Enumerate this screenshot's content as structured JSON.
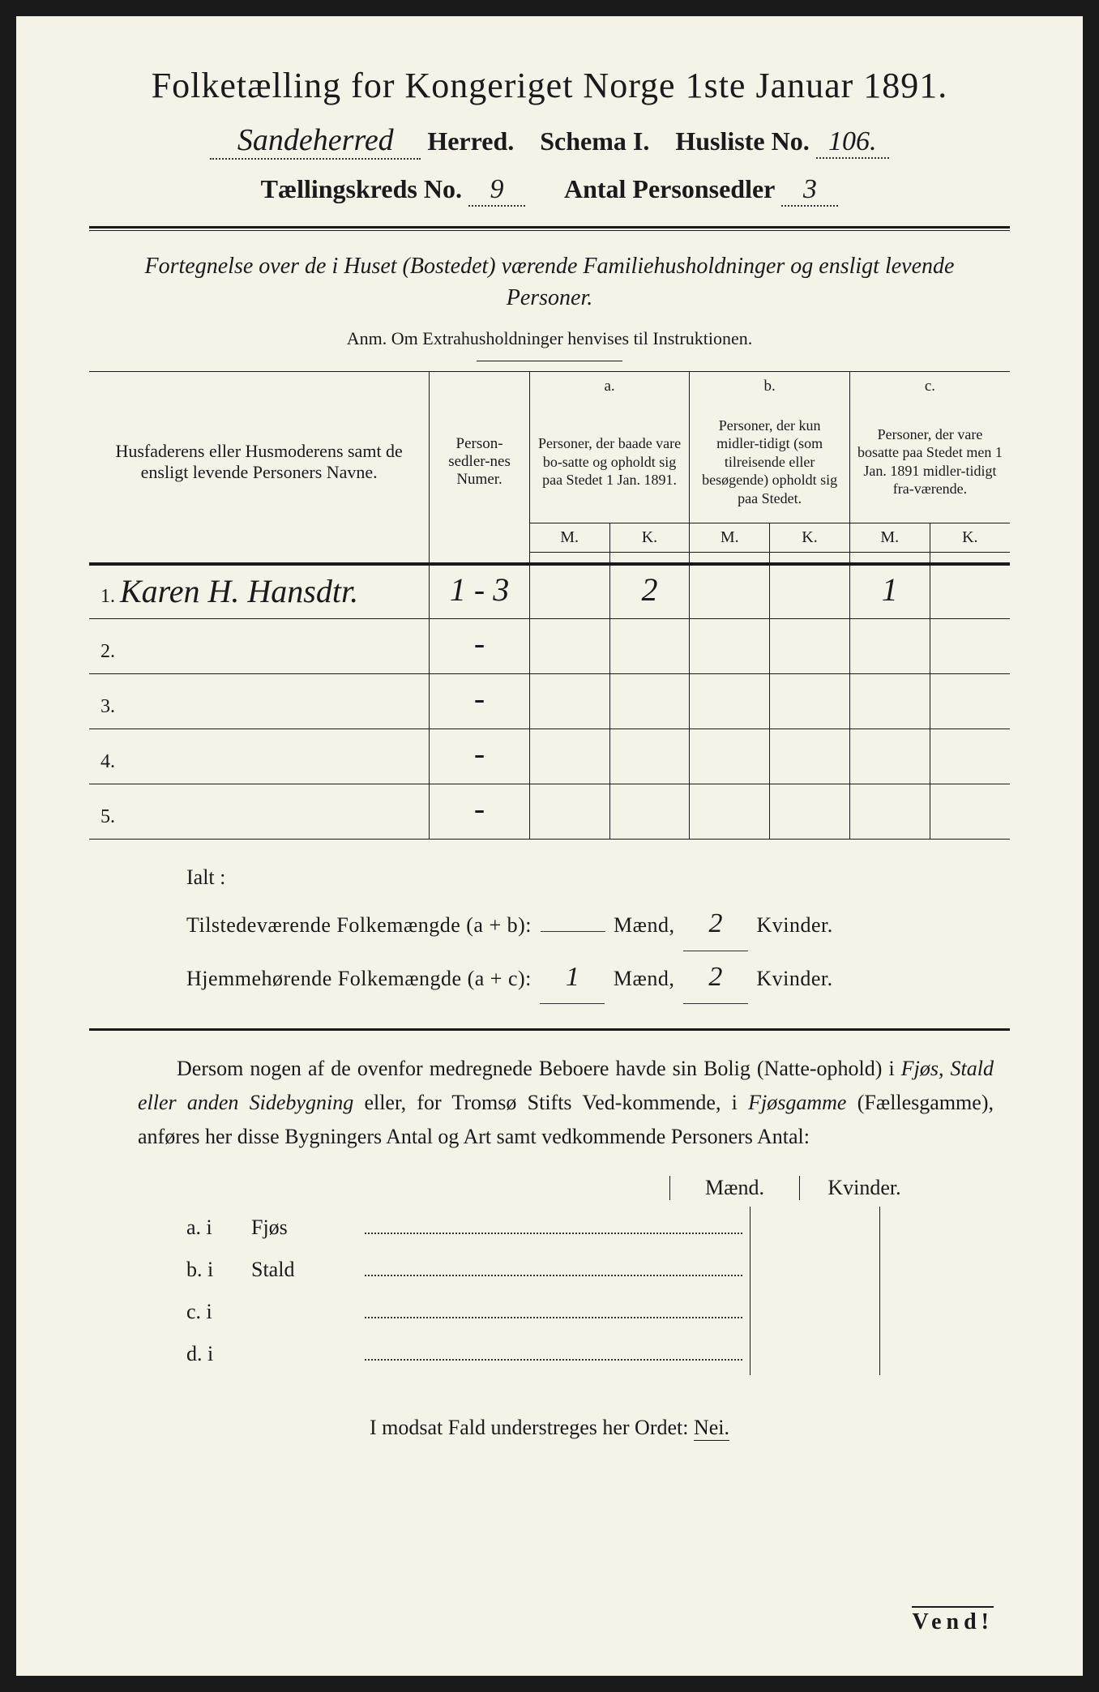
{
  "title": "Folketælling for Kongeriget Norge 1ste Januar 1891.",
  "line2": {
    "herred_value": "Sandeherred",
    "herred_label": "Herred.",
    "schema": "Schema I.",
    "husliste_label": "Husliste No.",
    "husliste_value": "106."
  },
  "line3": {
    "kreds_label": "Tællingskreds No.",
    "kreds_value": "9",
    "antal_label": "Antal Personsedler",
    "antal_value": "3"
  },
  "subtitle": "Fortegnelse over de i Huset (Bostedet) værende Familiehusholdninger og ensligt levende Personer.",
  "anm": "Anm.  Om Extrahusholdninger henvises til Instruktionen.",
  "table": {
    "col1_header": "Husfaderens eller Husmoderens samt de ensligt levende Personers Navne.",
    "col2_header": "Person-sedler-nes Numer.",
    "col_a_label": "a.",
    "col_a_text": "Personer, der baade vare bo-satte og opholdt sig paa Stedet 1 Jan. 1891.",
    "col_b_label": "b.",
    "col_b_text": "Personer, der kun midler-tidigt (som tilreisende eller besøgende) opholdt sig paa Stedet.",
    "col_c_label": "c.",
    "col_c_text": "Personer, der vare bosatte paa Stedet men 1 Jan. 1891 midler-tidigt fra-værende.",
    "m": "M.",
    "k": "K.",
    "rows": [
      {
        "n": "1.",
        "name": "Karen H. Hansdtr.",
        "num": "1 - 3",
        "am": "",
        "ak": "2",
        "bm": "",
        "bk": "",
        "cm": "1",
        "ck": ""
      },
      {
        "n": "2.",
        "name": "",
        "num": "-",
        "am": "",
        "ak": "",
        "bm": "",
        "bk": "",
        "cm": "",
        "ck": ""
      },
      {
        "n": "3.",
        "name": "",
        "num": "-",
        "am": "",
        "ak": "",
        "bm": "",
        "bk": "",
        "cm": "",
        "ck": ""
      },
      {
        "n": "4.",
        "name": "",
        "num": "-",
        "am": "",
        "ak": "",
        "bm": "",
        "bk": "",
        "cm": "",
        "ck": ""
      },
      {
        "n": "5.",
        "name": "",
        "num": "-",
        "am": "",
        "ak": "",
        "bm": "",
        "bk": "",
        "cm": "",
        "ck": ""
      }
    ]
  },
  "ialt": "Ialt :",
  "summary": {
    "row1_label": "Tilstedeværende Folkemængde (a + b):",
    "row1_m": "",
    "row1_k": "2",
    "row2_label": "Hjemmehørende Folkemængde (a + c):",
    "row2_m": "1",
    "row2_k": "2",
    "maend": "Mænd,",
    "kvinder": "Kvinder."
  },
  "body": "Dersom nogen af de ovenfor medregnede Beboere havde sin Bolig (Natte-ophold) i Fjøs, Stald eller anden Sidebygning eller, for Tromsø Stifts Ved-kommende, i Fjøsgamme (Fællesgamme), anføres her disse Bygningers Antal og Art samt vedkommende Personers Antal:",
  "body_plain_1": "Dersom nogen af de ovenfor medregnede Beboere havde sin Bolig (Natte-ophold) i ",
  "body_em_1": "Fjøs, Stald eller anden Sidebygning",
  "body_plain_2": " eller, for Tromsø Stifts Ved-kommende, i ",
  "body_em_2": "Fjøsgamme",
  "body_plain_3": " (Fællesgamme), anføres her disse Bygningers Antal og Art samt vedkommende Personers Antal:",
  "mk_maend": "Mænd.",
  "mk_kvinder": "Kvinder.",
  "abcd": [
    {
      "letter": "a.  i",
      "name": "Fjøs"
    },
    {
      "letter": "b.  i",
      "name": "Stald"
    },
    {
      "letter": "c.  i",
      "name": ""
    },
    {
      "letter": "d.  i",
      "name": ""
    }
  ],
  "nei_text": "I modsat Fald understreges her Ordet: ",
  "nei": "Nei.",
  "vend": "Vend!"
}
